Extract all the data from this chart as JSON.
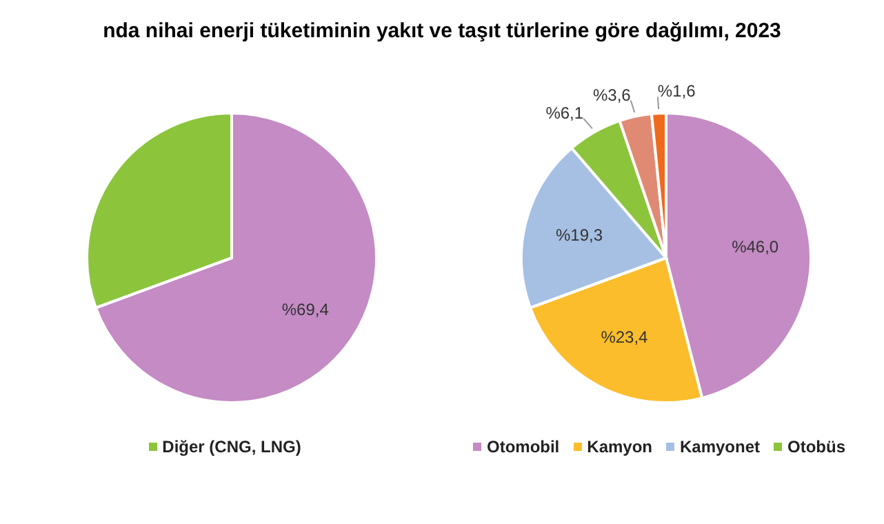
{
  "chart_data": [
    {
      "type": "pie",
      "title": "nda nihai enerji tüketiminin yakıt ve taşıt türlerine göre dağılımı, 2023",
      "categories": [
        null,
        "Diğer (CNG, LNG)"
      ],
      "values": [
        69.4,
        30.6
      ],
      "colors": [
        "#c48bc4",
        "#8cc43c"
      ],
      "value_labels": [
        "%69,4",
        null
      ],
      "legend": "bottom"
    },
    {
      "type": "pie",
      "categories": [
        "Otomobil",
        "Kamyon",
        "Kamyonet",
        "Otobüs",
        null,
        null
      ],
      "values": [
        46.0,
        23.4,
        19.3,
        6.1,
        3.6,
        1.6
      ],
      "colors": [
        "#c48bc4",
        "#fbbd2b",
        "#a6c0e3",
        "#8cc43c",
        "#e08a74",
        "#f06a1e"
      ],
      "value_labels": [
        "%46,0",
        "%23,4",
        "%19,3",
        "%6,1",
        "%3,6",
        "%1,6"
      ],
      "legend": "bottom"
    }
  ]
}
